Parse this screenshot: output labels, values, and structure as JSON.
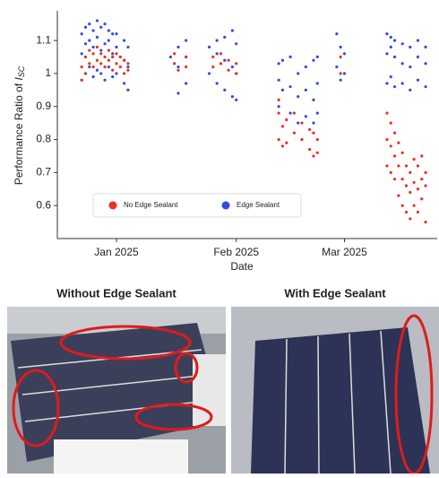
{
  "chart_data": {
    "type": "scatter",
    "ylabel": {
      "text": "Performance Ratio of ",
      "symbol": "I",
      "subscript": "SC"
    },
    "xlabel": "Date",
    "xlim": [
      -15.3,
      83
    ],
    "xticks": [
      {
        "value": 0,
        "label": "Jan 2025"
      },
      {
        "value": 31,
        "label": "Feb 2025"
      },
      {
        "value": 59,
        "label": "Mar 2025"
      }
    ],
    "ylim": [
      0.5,
      1.19
    ],
    "yticks": [
      0.6,
      0.7,
      0.8,
      0.9,
      1.0,
      1.1
    ],
    "legend": "lower left",
    "series": [
      {
        "name": "No Edge Sealant",
        "color": "#e8321e",
        "x": [
          -9,
          -9,
          -8,
          -8,
          -7,
          -7,
          -6,
          -6,
          -5,
          -5,
          -4,
          -4,
          -3,
          -3,
          -2,
          -2,
          -1,
          -1,
          0,
          0,
          1,
          1,
          2,
          2,
          3,
          3,
          15,
          15,
          16,
          18,
          18,
          25,
          25,
          27,
          27,
          29,
          29,
          31,
          31,
          42,
          42,
          42,
          43,
          43,
          44,
          44,
          46,
          46,
          48,
          48,
          50,
          50,
          51,
          51,
          52,
          52,
          58,
          58,
          70,
          70,
          70,
          71,
          71,
          71,
          72,
          72,
          72,
          73,
          73,
          73,
          74,
          74,
          74,
          75,
          75,
          75,
          76,
          76,
          76,
          77,
          77,
          77,
          78,
          78,
          78,
          79,
          79,
          79,
          80,
          80,
          80
        ],
        "values": [
          0.98,
          1.02,
          1.0,
          1.05,
          1.03,
          1.07,
          1.02,
          1.06,
          1.04,
          1.08,
          1.03,
          1.06,
          1.02,
          1.05,
          1.04,
          1.07,
          1.01,
          1.05,
          1.03,
          1.06,
          1.02,
          1.05,
          1.0,
          1.04,
          1.01,
          1.03,
          1.03,
          1.06,
          1.01,
          1.02,
          1.05,
          1.02,
          1.05,
          1.03,
          1.06,
          1.01,
          1.04,
          1.0,
          1.03,
          0.8,
          0.88,
          0.92,
          0.78,
          0.84,
          0.79,
          0.86,
          0.82,
          0.88,
          0.8,
          0.85,
          0.77,
          0.83,
          0.75,
          0.82,
          0.76,
          0.8,
          1.0,
          1.05,
          0.72,
          0.8,
          0.88,
          0.7,
          0.78,
          0.85,
          0.68,
          0.75,
          0.82,
          0.63,
          0.72,
          0.79,
          0.6,
          0.68,
          0.76,
          0.58,
          0.66,
          0.72,
          0.56,
          0.64,
          0.7,
          0.6,
          0.67,
          0.74,
          0.58,
          0.65,
          0.72,
          0.62,
          0.68,
          0.75,
          0.55,
          0.66,
          0.7
        ]
      },
      {
        "name": "Edge Sealant",
        "color": "#2f4ee0",
        "x": [
          -9,
          -9,
          -9,
          -8,
          -8,
          -8,
          -7,
          -7,
          -7,
          -6,
          -6,
          -6,
          -5,
          -5,
          -5,
          -4,
          -4,
          -4,
          -3,
          -3,
          -3,
          -2,
          -2,
          -2,
          -1,
          -1,
          -1,
          0,
          0,
          0,
          2,
          2,
          2,
          3,
          3,
          3,
          14,
          16,
          16,
          16,
          18,
          18,
          18,
          24,
          24,
          26,
          26,
          26,
          28,
          28,
          28,
          30,
          30,
          30,
          31,
          31,
          31,
          42,
          42,
          42,
          43,
          43,
          45,
          45,
          45,
          47,
          47,
          47,
          49,
          49,
          49,
          51,
          51,
          51,
          52,
          52,
          52,
          57,
          57,
          58,
          58,
          59,
          59,
          70,
          70,
          70,
          71,
          71,
          71,
          72,
          72,
          72,
          74,
          74,
          74,
          76,
          76,
          76,
          78,
          78,
          78,
          80,
          80,
          80
        ],
        "values": [
          0.98,
          1.06,
          1.12,
          1.0,
          1.09,
          1.14,
          1.02,
          1.1,
          1.15,
          0.99,
          1.08,
          1.13,
          1.01,
          1.11,
          1.16,
          1.0,
          1.07,
          1.14,
          0.98,
          1.09,
          1.15,
          1.02,
          1.1,
          1.13,
          0.99,
          1.06,
          1.12,
          1.0,
          1.08,
          1.12,
          0.97,
          1.04,
          1.1,
          0.95,
          1.02,
          1.08,
          1.05,
          0.94,
          1.02,
          1.08,
          0.97,
          1.05,
          1.1,
          1.0,
          1.08,
          0.97,
          1.06,
          1.1,
          0.95,
          1.04,
          1.11,
          0.93,
          1.02,
          1.13,
          0.92,
          1.0,
          1.09,
          0.9,
          0.98,
          1.03,
          0.95,
          1.04,
          0.88,
          0.96,
          1.05,
          0.85,
          0.93,
          1.0,
          0.87,
          0.95,
          1.02,
          0.85,
          0.92,
          1.04,
          0.88,
          0.97,
          1.05,
          1.02,
          1.12,
          0.98,
          1.08,
          1.0,
          1.06,
          0.97,
          1.06,
          1.12,
          0.99,
          1.08,
          1.11,
          0.96,
          1.05,
          1.1,
          0.97,
          1.03,
          1.09,
          0.95,
          1.02,
          1.08,
          0.98,
          1.05,
          1.1,
          0.96,
          1.03,
          1.08
        ]
      }
    ]
  },
  "photos": {
    "left_title": "Without Edge Sealant",
    "right_title": "With Edge Sealant"
  }
}
